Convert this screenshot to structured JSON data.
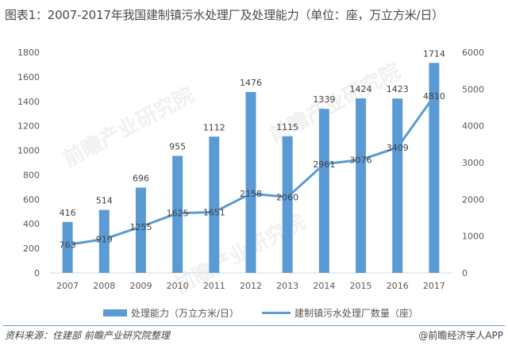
{
  "title": "图表1：2007-2017年我国建制镇污水处理厂及处理能力（单位：座，万立方米/日）",
  "source": "资料来源：住建部 前瞻产业研究院整理",
  "brand": "@前瞻经济学人APP",
  "watermark_text": "前瞻产业研究院",
  "colors": {
    "bar": "#5b9bd5",
    "line": "#5b9bd5",
    "axis": "#d9d9d9",
    "text": "#595959"
  },
  "chart_data": {
    "type": "bar+line",
    "categories": [
      "2007",
      "2008",
      "2009",
      "2010",
      "2011",
      "2012",
      "2013",
      "2014",
      "2015",
      "2016",
      "2017"
    ],
    "series": [
      {
        "name": "处理能力（万立方米/日）",
        "type": "bar",
        "axis": "left",
        "values": [
          416,
          514,
          696,
          955,
          1112,
          1476,
          1115,
          1339,
          1424,
          1423,
          1714
        ]
      },
      {
        "name": "建制镇污水处理厂数量（座）",
        "type": "line",
        "axis": "right",
        "values": [
          763,
          919,
          1255,
          1625,
          1651,
          2158,
          2060,
          2961,
          3076,
          3409,
          4810
        ]
      }
    ],
    "y_left": {
      "min": 0,
      "max": 1800,
      "ticks": [
        0,
        200,
        400,
        600,
        800,
        1000,
        1200,
        1400,
        1600,
        1800
      ]
    },
    "y_right": {
      "min": 0,
      "max": 6000,
      "ticks": [
        0,
        1000,
        2000,
        3000,
        4000,
        5000,
        6000
      ]
    },
    "legend_position": "bottom",
    "grid": false
  }
}
